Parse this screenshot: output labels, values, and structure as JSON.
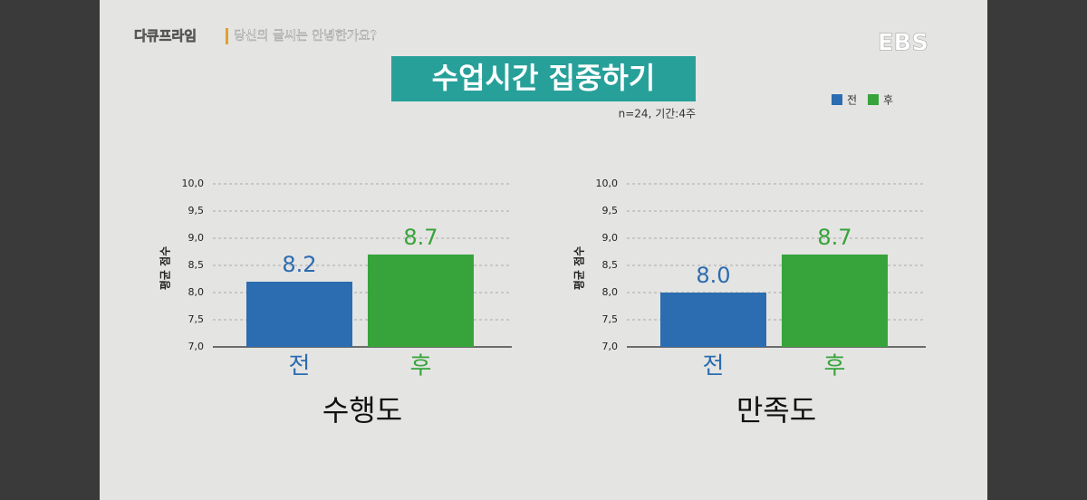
{
  "header": {
    "program": "다큐프라임",
    "episode": "당신의 글씨는 안녕한가요?",
    "logo": "EBS",
    "title": "수업시간 집중하기",
    "note": "n=24, 기간:4주"
  },
  "legend": [
    {
      "name": "전",
      "color": "#2c6cb0"
    },
    {
      "name": "후",
      "color": "#36a43a"
    }
  ],
  "chart_data": [
    {
      "type": "bar",
      "title": "수행도",
      "ylabel": "평균 점수",
      "categories": [
        "전",
        "후"
      ],
      "values": [
        8.2,
        8.7
      ],
      "colors": [
        "#2c6cb0",
        "#36a43a"
      ],
      "ylim": [
        7,
        10
      ],
      "yticks": [
        {
          "value": 7,
          "label": "7,0"
        },
        {
          "value": 7.5,
          "label": "7,5"
        },
        {
          "value": 8,
          "label": "8,0"
        },
        {
          "value": 8.5,
          "label": "8,5"
        },
        {
          "value": 9,
          "label": "9,0"
        },
        {
          "value": 9.5,
          "label": "9,5"
        },
        {
          "value": 10,
          "label": "10,0"
        }
      ],
      "grid": true
    },
    {
      "type": "bar",
      "title": "만족도",
      "ylabel": "평균 점수",
      "categories": [
        "전",
        "후"
      ],
      "values": [
        8.0,
        8.7
      ],
      "value_labels": [
        "8.0",
        "8.7"
      ],
      "colors": [
        "#2c6cb0",
        "#36a43a"
      ],
      "ylim": [
        7,
        10
      ],
      "yticks": [
        {
          "value": 7,
          "label": "7,0"
        },
        {
          "value": 7.5,
          "label": "7,5"
        },
        {
          "value": 8,
          "label": "8,0"
        },
        {
          "value": 8.5,
          "label": "8,5"
        },
        {
          "value": 9,
          "label": "9,0"
        },
        {
          "value": 9.5,
          "label": "9,5"
        },
        {
          "value": 10,
          "label": "10,0"
        }
      ],
      "grid": true
    }
  ]
}
